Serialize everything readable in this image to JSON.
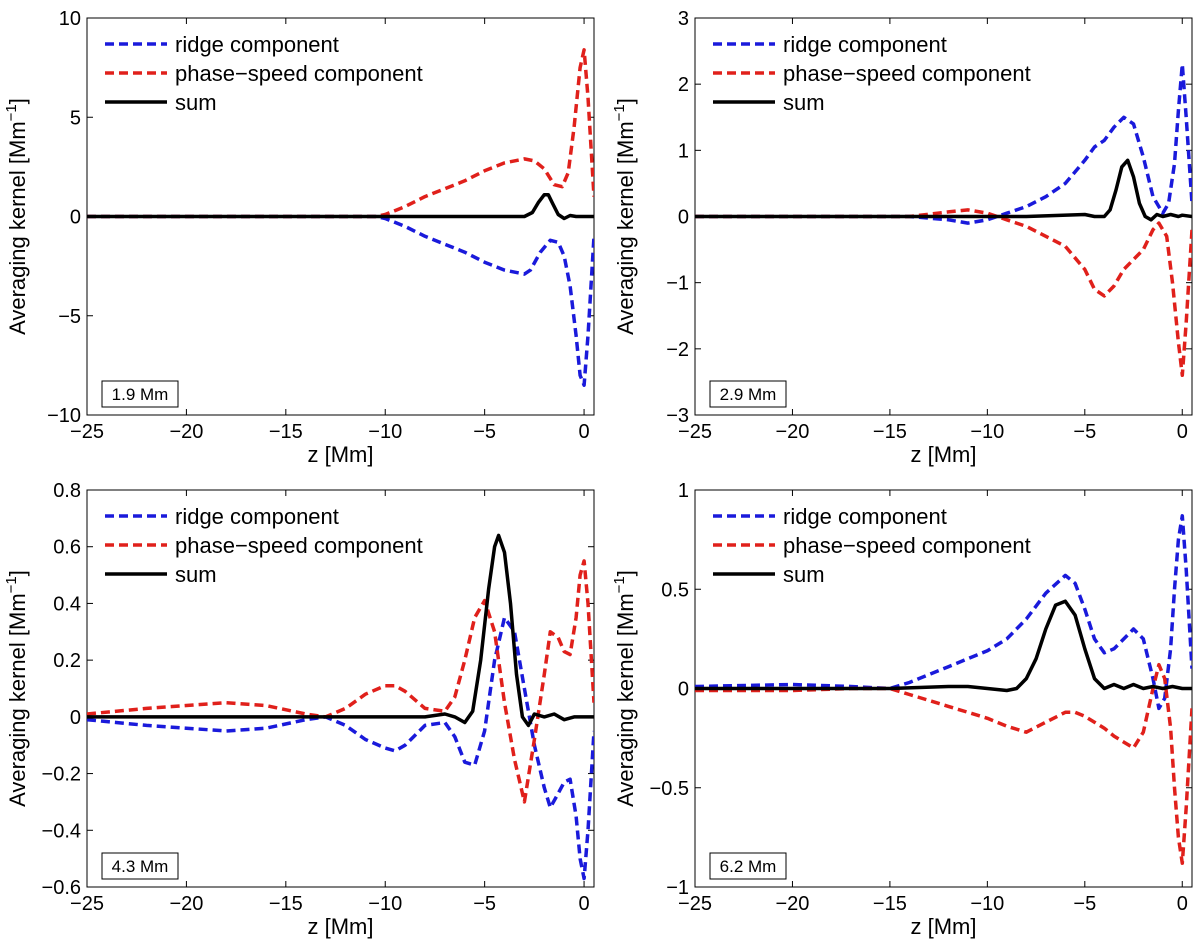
{
  "chart_data": [
    {
      "type": "line",
      "panel_label": "1.9 Mm",
      "xlabel": "z [Mm]",
      "ylabel_main": "Averaging kernel [Mm",
      "ylabel_sup": "−1",
      "ylabel_close": "]",
      "xlim": [
        -25,
        0.5
      ],
      "ylim": [
        -10,
        10
      ],
      "xticks": [
        -25,
        -20,
        -15,
        -10,
        -5,
        0
      ],
      "yticks": [
        -10,
        -5,
        0,
        5,
        10
      ],
      "legend": [
        "ridge component",
        "phase−speed component",
        "sum"
      ],
      "series": [
        {
          "name": "ridge component",
          "color": "#1a1adb",
          "dash": true,
          "x": [
            -25,
            -10.5,
            -10,
            -9,
            -8,
            -7,
            -6,
            -5,
            -4,
            -3,
            -2.7,
            -2.2,
            -1.7,
            -1.3,
            -1,
            -0.7,
            -0.4,
            -0.2,
            0,
            0.2,
            0.5
          ],
          "y": [
            0,
            0,
            -0.1,
            -0.5,
            -1,
            -1.4,
            -1.8,
            -2.3,
            -2.7,
            -2.9,
            -2.7,
            -1.8,
            -1.2,
            -1.3,
            -2,
            -3.5,
            -6,
            -8,
            -8.5,
            -6,
            -1
          ]
        },
        {
          "name": "phase−speed component",
          "color": "#e0201b",
          "dash": true,
          "x": [
            -25,
            -10.5,
            -10,
            -9,
            -8,
            -7,
            -6,
            -5,
            -4,
            -3,
            -2.5,
            -2,
            -1.5,
            -1.1,
            -0.8,
            -0.5,
            -0.2,
            0,
            0.2,
            0.5
          ],
          "y": [
            0,
            0,
            0.1,
            0.5,
            1,
            1.4,
            1.8,
            2.3,
            2.7,
            2.9,
            2.8,
            2.4,
            1.6,
            1.5,
            2.2,
            4.5,
            7.5,
            8.4,
            6,
            1
          ]
        },
        {
          "name": "sum",
          "color": "#000000",
          "dash": false,
          "x": [
            -25,
            -6,
            -3,
            -2.6,
            -2.3,
            -2,
            -1.8,
            -1.6,
            -1.3,
            -1,
            -0.7,
            -0.4,
            0,
            0.5
          ],
          "y": [
            0,
            0,
            0,
            0.2,
            0.7,
            1.1,
            1.1,
            0.7,
            0.1,
            -0.1,
            0.05,
            0,
            0,
            0
          ]
        }
      ]
    },
    {
      "type": "line",
      "panel_label": "2.9 Mm",
      "xlabel": "z [Mm]",
      "ylabel_main": "Averaging kernel [Mm",
      "ylabel_sup": "−1",
      "ylabel_close": "]",
      "xlim": [
        -25,
        0.5
      ],
      "ylim": [
        -3,
        3
      ],
      "xticks": [
        -25,
        -20,
        -15,
        -10,
        -5,
        0
      ],
      "yticks": [
        -3,
        -2,
        -1,
        0,
        1,
        2,
        3
      ],
      "legend": [
        "ridge component",
        "phase−speed component",
        "sum"
      ],
      "series": [
        {
          "name": "ridge component",
          "color": "#1a1adb",
          "dash": true,
          "x": [
            -25,
            -14,
            -12,
            -11,
            -10,
            -9,
            -8,
            -7,
            -6,
            -5,
            -4.5,
            -4,
            -3.5,
            -3,
            -2.5,
            -2,
            -1.5,
            -1,
            -0.7,
            -0.4,
            -0.2,
            0,
            0.2,
            0.5
          ],
          "y": [
            0,
            0,
            -0.05,
            -0.1,
            -0.05,
            0.05,
            0.15,
            0.3,
            0.5,
            0.85,
            1.05,
            1.15,
            1.35,
            1.5,
            1.4,
            0.9,
            0.3,
            0.05,
            0.2,
            0.8,
            1.6,
            2.3,
            1.5,
            0.2
          ]
        },
        {
          "name": "phase−speed component",
          "color": "#e0201b",
          "dash": true,
          "x": [
            -25,
            -14,
            -12,
            -11,
            -10,
            -9,
            -8,
            -7,
            -6,
            -5,
            -4.5,
            -4,
            -3.5,
            -3,
            -2.5,
            -2,
            -1.5,
            -1.2,
            -0.8,
            -0.5,
            -0.2,
            0,
            0.2,
            0.5
          ],
          "y": [
            0,
            0,
            0.07,
            0.1,
            0.05,
            -0.05,
            -0.15,
            -0.3,
            -0.45,
            -0.8,
            -1.1,
            -1.2,
            -1.05,
            -0.8,
            -0.65,
            -0.5,
            -0.2,
            -0.1,
            -0.3,
            -1,
            -1.9,
            -2.4,
            -1.6,
            -0.2
          ]
        },
        {
          "name": "sum",
          "color": "#000000",
          "dash": false,
          "x": [
            -25,
            -8,
            -5,
            -4.5,
            -4,
            -3.7,
            -3.4,
            -3.1,
            -2.8,
            -2.5,
            -2.2,
            -1.9,
            -1.6,
            -1.3,
            -1,
            -0.6,
            -0.2,
            0,
            0.5
          ],
          "y": [
            0,
            0,
            0.03,
            0,
            0,
            0.1,
            0.4,
            0.75,
            0.85,
            0.6,
            0.2,
            0,
            -0.05,
            0.03,
            0,
            0.03,
            0,
            0.02,
            0
          ]
        }
      ]
    },
    {
      "type": "line",
      "panel_label": "4.3 Mm",
      "xlabel": "z [Mm]",
      "ylabel_main": "Averaging kernel [Mm",
      "ylabel_sup": "−1",
      "ylabel_close": "]",
      "xlim": [
        -25,
        0.5
      ],
      "ylim": [
        -0.6,
        0.8
      ],
      "xticks": [
        -25,
        -20,
        -15,
        -10,
        -5,
        0
      ],
      "yticks": [
        -0.6,
        -0.4,
        -0.2,
        0,
        0.2,
        0.4,
        0.6,
        0.8
      ],
      "legend": [
        "ridge component",
        "phase−speed component",
        "sum"
      ],
      "series": [
        {
          "name": "ridge component",
          "color": "#1a1adb",
          "dash": true,
          "x": [
            -25,
            -22,
            -20,
            -18,
            -16,
            -14,
            -13,
            -12,
            -11,
            -10,
            -9.5,
            -9,
            -8,
            -7,
            -6.5,
            -6,
            -5.5,
            -5,
            -4.5,
            -4,
            -3.5,
            -3,
            -2.5,
            -2,
            -1.7,
            -1.3,
            -1,
            -0.7,
            -0.4,
            -0.2,
            0,
            0.2,
            0.5
          ],
          "y": [
            -0.01,
            -0.03,
            -0.04,
            -0.05,
            -0.04,
            -0.01,
            0,
            -0.03,
            -0.08,
            -0.11,
            -0.12,
            -0.1,
            -0.03,
            -0.02,
            -0.07,
            -0.16,
            -0.17,
            -0.05,
            0.2,
            0.35,
            0.3,
            0.1,
            -0.1,
            -0.25,
            -0.32,
            -0.27,
            -0.23,
            -0.22,
            -0.35,
            -0.5,
            -0.57,
            -0.4,
            -0.05
          ]
        },
        {
          "name": "phase−speed component",
          "color": "#e0201b",
          "dash": true,
          "x": [
            -25,
            -22,
            -20,
            -18,
            -16,
            -14,
            -13,
            -12,
            -11,
            -10,
            -9.5,
            -9,
            -8,
            -7,
            -6.5,
            -6,
            -5.5,
            -5,
            -4.5,
            -4,
            -3.5,
            -3,
            -2.5,
            -2,
            -1.7,
            -1.3,
            -1,
            -0.7,
            -0.4,
            -0.2,
            0,
            0.2,
            0.5
          ],
          "y": [
            0.01,
            0.03,
            0.04,
            0.05,
            0.04,
            0.01,
            0,
            0.03,
            0.08,
            0.11,
            0.11,
            0.09,
            0.03,
            0.02,
            0.07,
            0.2,
            0.35,
            0.41,
            0.3,
            0.05,
            -0.15,
            -0.3,
            -0.08,
            0.15,
            0.3,
            0.28,
            0.23,
            0.22,
            0.35,
            0.5,
            0.55,
            0.4,
            0.05
          ]
        },
        {
          "name": "sum",
          "color": "#000000",
          "dash": false,
          "x": [
            -25,
            -15,
            -10,
            -8,
            -7,
            -6.5,
            -6,
            -5.6,
            -5.2,
            -4.8,
            -4.5,
            -4.3,
            -4,
            -3.7,
            -3.4,
            -3.1,
            -2.8,
            -2.5,
            -2,
            -1.5,
            -1,
            -0.5,
            0,
            0.5
          ],
          "y": [
            0,
            0,
            0,
            0,
            0.01,
            0,
            -0.02,
            0.02,
            0.2,
            0.45,
            0.6,
            0.64,
            0.58,
            0.4,
            0.15,
            0,
            -0.03,
            0.01,
            0,
            0.01,
            -0.01,
            0,
            0,
            0
          ]
        }
      ]
    },
    {
      "type": "line",
      "panel_label": "6.2 Mm",
      "xlabel": "z [Mm]",
      "ylabel_main": "Averaging kernel [Mm",
      "ylabel_sup": "−1",
      "ylabel_close": "]",
      "xlim": [
        -25,
        0.5
      ],
      "ylim": [
        -1,
        1
      ],
      "xticks": [
        -25,
        -20,
        -15,
        -10,
        -5,
        0
      ],
      "yticks": [
        -1,
        -0.5,
        0,
        0.5,
        1
      ],
      "legend": [
        "ridge component",
        "phase−speed component",
        "sum"
      ],
      "series": [
        {
          "name": "ridge component",
          "color": "#1a1adb",
          "dash": true,
          "x": [
            -25,
            -20,
            -17,
            -15,
            -14,
            -13,
            -12,
            -11,
            -10,
            -9,
            -8,
            -7,
            -6,
            -5.5,
            -5,
            -4.5,
            -4,
            -3.5,
            -3,
            -2.5,
            -2,
            -1.5,
            -1.2,
            -0.9,
            -0.6,
            -0.4,
            -0.2,
            0,
            0.2,
            0.5
          ],
          "y": [
            0.01,
            0.02,
            0.01,
            0,
            0.03,
            0.07,
            0.11,
            0.15,
            0.19,
            0.25,
            0.35,
            0.48,
            0.57,
            0.53,
            0.4,
            0.25,
            0.18,
            0.2,
            0.25,
            0.3,
            0.25,
            0.05,
            -0.1,
            -0.05,
            0.2,
            0.5,
            0.75,
            0.87,
            0.6,
            0.1
          ]
        },
        {
          "name": "phase−speed component",
          "color": "#e0201b",
          "dash": true,
          "x": [
            -25,
            -20,
            -17,
            -15,
            -14,
            -13,
            -12,
            -11,
            -10,
            -9,
            -8,
            -7,
            -6,
            -5.5,
            -5,
            -4.5,
            -4,
            -3.5,
            -3,
            -2.5,
            -2,
            -1.5,
            -1.2,
            -0.9,
            -0.6,
            -0.4,
            -0.2,
            0,
            0.2,
            0.5
          ],
          "y": [
            -0.01,
            -0.01,
            0,
            0,
            -0.03,
            -0.06,
            -0.09,
            -0.12,
            -0.15,
            -0.19,
            -0.22,
            -0.17,
            -0.12,
            -0.12,
            -0.14,
            -0.17,
            -0.2,
            -0.24,
            -0.27,
            -0.3,
            -0.22,
            0,
            0.12,
            0.05,
            -0.2,
            -0.5,
            -0.75,
            -0.88,
            -0.6,
            -0.1
          ]
        },
        {
          "name": "sum",
          "color": "#000000",
          "dash": false,
          "x": [
            -25,
            -15,
            -12,
            -11,
            -10,
            -9,
            -8.5,
            -8,
            -7.5,
            -7,
            -6.5,
            -6,
            -5.5,
            -5,
            -4.5,
            -4,
            -3.5,
            -3,
            -2.5,
            -2,
            -1.5,
            -1,
            -0.5,
            0,
            0.5
          ],
          "y": [
            0,
            0,
            0.01,
            0.01,
            0,
            -0.01,
            0,
            0.05,
            0.15,
            0.3,
            0.42,
            0.44,
            0.37,
            0.2,
            0.05,
            0,
            0.02,
            0,
            0.02,
            0,
            0.01,
            0,
            0.01,
            0,
            0
          ]
        }
      ]
    }
  ]
}
